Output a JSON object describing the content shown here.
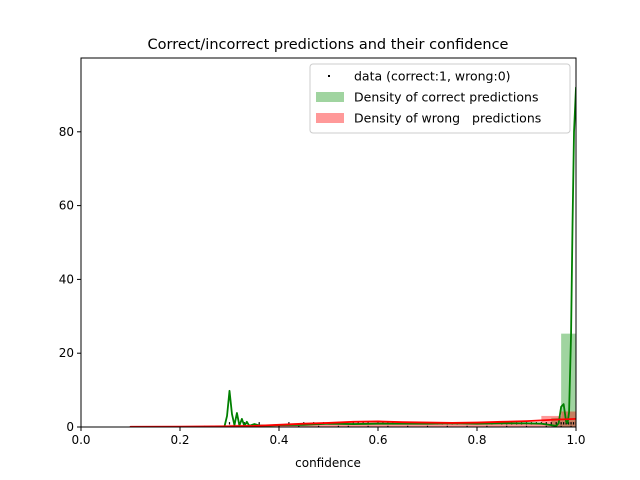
{
  "chart_data": {
    "type": "line",
    "title": "Correct/incorrect predictions and their confidence",
    "xlabel": "confidence",
    "ylabel": "",
    "xlim": [
      0.0,
      1.0
    ],
    "ylim": [
      0,
      100
    ],
    "xticks": [
      0.0,
      0.2,
      0.4,
      0.6,
      0.8,
      1.0
    ],
    "xtick_labels": [
      "0.0",
      "0.2",
      "0.4",
      "0.6",
      "0.8",
      "1.0"
    ],
    "yticks": [
      0,
      20,
      40,
      60,
      80
    ],
    "ytick_labels": [
      "0",
      "20",
      "40",
      "60",
      "80"
    ],
    "grid": false,
    "legend_position": "top-right",
    "legend": [
      {
        "label": "data (correct:1, wrong:0)",
        "kind": "marker",
        "color": "#000000"
      },
      {
        "label": "Density of correct predictions",
        "kind": "patch",
        "color": "#2ca02c"
      },
      {
        "label": "Density of wrong   predictions",
        "kind": "patch",
        "color": "#ff0000"
      }
    ],
    "histogram_correct": {
      "color": "#2ca02c",
      "alpha": 0.45,
      "bins": [
        {
          "x0": 0.95,
          "x1": 0.97,
          "value": 2.5
        },
        {
          "x0": 0.97,
          "x1": 1.0,
          "value": 25.3
        }
      ]
    },
    "histogram_wrong": {
      "color": "#ff0000",
      "alpha": 0.4,
      "bins": [
        {
          "x0": 0.1,
          "x1": 0.3,
          "value": 0.2
        },
        {
          "x0": 0.3,
          "x1": 0.5,
          "value": 0.6
        },
        {
          "x0": 0.5,
          "x1": 0.6,
          "value": 1.0
        },
        {
          "x0": 0.6,
          "x1": 0.7,
          "value": 0.9
        },
        {
          "x0": 0.7,
          "x1": 0.8,
          "value": 1.0
        },
        {
          "x0": 0.8,
          "x1": 0.93,
          "value": 1.2
        },
        {
          "x0": 0.93,
          "x1": 0.97,
          "value": 3.0
        },
        {
          "x0": 0.97,
          "x1": 1.0,
          "value": 4.2
        }
      ]
    },
    "kde_correct": {
      "color": "#008000",
      "x": [
        0.1,
        0.2,
        0.28,
        0.29,
        0.295,
        0.3,
        0.305,
        0.31,
        0.315,
        0.32,
        0.325,
        0.33,
        0.335,
        0.34,
        0.35,
        0.36,
        0.38,
        0.4,
        0.45,
        0.5,
        0.55,
        0.6,
        0.65,
        0.7,
        0.75,
        0.8,
        0.85,
        0.9,
        0.93,
        0.95,
        0.96,
        0.965,
        0.97,
        0.975,
        0.98,
        0.983,
        0.986,
        0.99,
        0.993,
        0.996,
        1.0
      ],
      "y": [
        0.0,
        0.0,
        0.0,
        0.2,
        3.0,
        9.8,
        3.5,
        0.5,
        3.8,
        0.4,
        2.2,
        0.3,
        1.4,
        0.3,
        0.8,
        0.4,
        0.4,
        0.5,
        0.6,
        0.9,
        0.8,
        0.9,
        0.9,
        0.9,
        1.0,
        0.9,
        1.0,
        1.0,
        0.9,
        0.5,
        0.3,
        1.0,
        5.5,
        6.2,
        1.5,
        1.0,
        4.0,
        25.0,
        55.0,
        80.0,
        92.0
      ]
    },
    "kde_wrong": {
      "color": "#ff0000",
      "x": [
        0.1,
        0.2,
        0.3,
        0.35,
        0.4,
        0.45,
        0.5,
        0.55,
        0.6,
        0.65,
        0.7,
        0.75,
        0.8,
        0.85,
        0.9,
        0.93,
        0.96,
        0.98,
        1.0
      ],
      "y": [
        0.05,
        0.1,
        0.2,
        0.3,
        0.6,
        0.9,
        1.1,
        1.4,
        1.5,
        1.3,
        1.2,
        1.1,
        1.2,
        1.4,
        1.6,
        1.8,
        2.0,
        2.1,
        2.2
      ]
    },
    "data_points": {
      "color": "#000000",
      "correct_y": 1,
      "wrong_y": 0,
      "correct_x": [
        0.3,
        0.31,
        0.33,
        0.36,
        0.42,
        0.45,
        0.47,
        0.49,
        0.5,
        0.51,
        0.52,
        0.53,
        0.55,
        0.56,
        0.57,
        0.58,
        0.6,
        0.61,
        0.62,
        0.63,
        0.64,
        0.65,
        0.66,
        0.68,
        0.69,
        0.7,
        0.71,
        0.72,
        0.73,
        0.74,
        0.75,
        0.76,
        0.78,
        0.79,
        0.8,
        0.81,
        0.82,
        0.83,
        0.85,
        0.86,
        0.87,
        0.88,
        0.89,
        0.9,
        0.91,
        0.92,
        0.93,
        0.94,
        0.95,
        0.96,
        0.97,
        0.975,
        0.98,
        0.985,
        0.99,
        0.995,
        1.0
      ],
      "wrong_x": [
        0.25,
        0.33,
        0.4,
        0.44,
        0.48,
        0.52,
        0.54,
        0.58,
        0.62,
        0.66,
        0.7,
        0.74,
        0.78,
        0.82,
        0.86,
        0.9,
        0.94,
        0.97,
        0.99
      ]
    }
  }
}
